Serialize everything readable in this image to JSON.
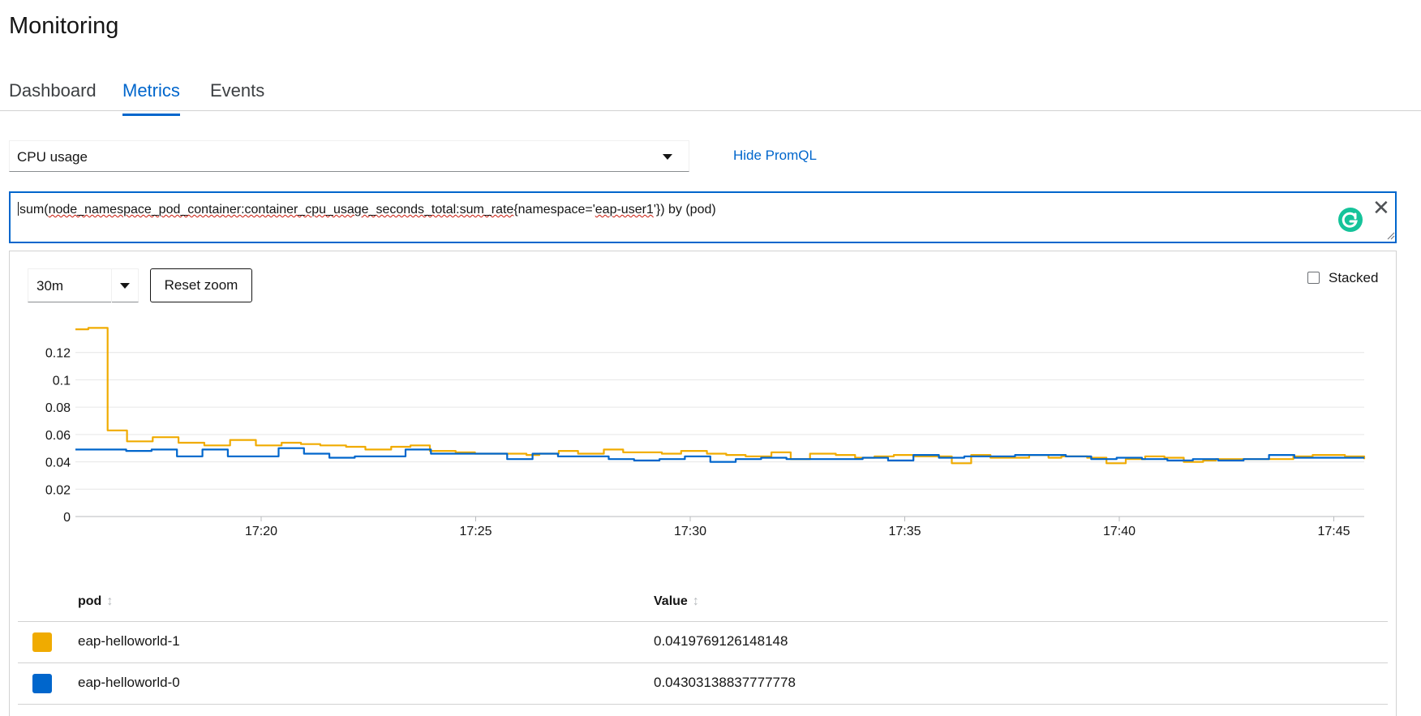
{
  "page": {
    "title": "Monitoring"
  },
  "tabs": [
    {
      "label": "Dashboard",
      "active": false
    },
    {
      "label": "Metrics",
      "active": true
    },
    {
      "label": "Events",
      "active": false
    }
  ],
  "query_select": {
    "value": "CPU usage"
  },
  "hide_promql": {
    "label": "Hide PromQL"
  },
  "promql": {
    "prefix": "sum(",
    "metric": "node_namespace_pod_container:container_cpu_usage_seconds_total:sum_rate",
    "open": "{namespace='",
    "namespace": "eap-user1",
    "suffix": "'}) by (pod)"
  },
  "controls": {
    "timespan": "30m",
    "reset_zoom": "Reset zoom",
    "stacked_label": "Stacked",
    "stacked_checked": false
  },
  "table": {
    "headers": {
      "pod": "pod",
      "value": "Value"
    },
    "rows": [
      {
        "pod": "eap-helloworld-1",
        "value": "0.0419769126148148",
        "color": "#f0ab00"
      },
      {
        "pod": "eap-helloworld-0",
        "value": "0.04303138837777778",
        "color": "#0066cc"
      }
    ]
  },
  "chart_data": {
    "type": "line",
    "x_ticks": [
      "17:20",
      "17:25",
      "17:30",
      "17:35",
      "17:40",
      "17:45"
    ],
    "y_ticks": [
      "0",
      "0.02",
      "0.04",
      "0.06",
      "0.08",
      "0.1",
      "0.12"
    ],
    "ylim": [
      0,
      0.14
    ],
    "grid": true,
    "series": [
      {
        "name": "eap-helloworld-1",
        "color": "#f0ab00",
        "values": [
          0.137,
          0.137,
          0.138,
          0.138,
          0.138,
          0.063,
          0.063,
          0.063,
          0.055,
          0.055,
          0.055,
          0.055,
          0.058,
          0.058,
          0.058,
          0.058,
          0.054,
          0.054,
          0.054,
          0.054,
          0.052,
          0.052,
          0.052,
          0.052,
          0.056,
          0.056,
          0.056,
          0.056,
          0.052,
          0.052,
          0.052,
          0.052,
          0.054,
          0.054,
          0.054,
          0.053,
          0.053,
          0.053,
          0.052,
          0.052,
          0.052,
          0.052,
          0.051,
          0.051,
          0.051,
          0.049,
          0.049,
          0.049,
          0.049,
          0.051,
          0.051,
          0.051,
          0.052,
          0.052,
          0.052,
          0.048,
          0.048,
          0.048,
          0.048,
          0.047,
          0.047,
          0.047,
          0.046,
          0.046,
          0.046,
          0.046,
          0.046,
          0.046,
          0.046,
          0.046,
          0.045,
          0.045,
          0.046,
          0.046,
          0.046,
          0.048,
          0.048,
          0.048,
          0.046,
          0.046,
          0.046,
          0.046,
          0.049,
          0.049,
          0.049,
          0.047,
          0.047,
          0.047,
          0.047,
          0.047,
          0.047,
          0.046,
          0.046,
          0.046,
          0.048,
          0.048,
          0.048,
          0.048,
          0.046,
          0.046,
          0.046,
          0.045,
          0.045,
          0.045,
          0.044,
          0.044,
          0.044,
          0.044,
          0.047,
          0.047,
          0.047,
          0.042,
          0.042,
          0.042,
          0.046,
          0.046,
          0.046,
          0.046,
          0.045,
          0.045,
          0.045,
          0.043,
          0.043,
          0.043,
          0.044,
          0.044,
          0.044,
          0.045,
          0.045,
          0.045,
          0.044,
          0.044,
          0.044,
          0.044,
          0.044,
          0.044,
          0.039,
          0.039,
          0.039,
          0.045,
          0.045,
          0.045,
          0.043,
          0.043,
          0.043,
          0.043,
          0.043,
          0.043,
          0.045,
          0.045,
          0.045,
          0.043,
          0.043,
          0.044,
          0.044,
          0.044,
          0.044,
          0.043,
          0.043,
          0.043,
          0.039,
          0.039,
          0.039,
          0.042,
          0.042,
          0.042,
          0.044,
          0.044,
          0.044,
          0.043,
          0.043,
          0.043,
          0.04,
          0.04,
          0.04,
          0.041,
          0.041,
          0.042,
          0.042,
          0.042,
          0.042,
          0.042,
          0.042,
          0.042,
          0.042,
          0.042,
          0.042,
          0.042,
          0.042,
          0.044,
          0.044,
          0.044,
          0.045,
          0.045,
          0.045,
          0.045,
          0.045,
          0.044,
          0.044,
          0.044,
          0.042
        ],
        "note_values_are_approximate": true
      },
      {
        "name": "eap-helloworld-0",
        "color": "#0066cc",
        "values": [
          0.049,
          0.049,
          0.049,
          0.049,
          0.049,
          0.049,
          0.049,
          0.049,
          0.048,
          0.048,
          0.048,
          0.048,
          0.049,
          0.049,
          0.049,
          0.049,
          0.044,
          0.044,
          0.044,
          0.044,
          0.049,
          0.049,
          0.049,
          0.049,
          0.044,
          0.044,
          0.044,
          0.044,
          0.044,
          0.044,
          0.044,
          0.044,
          0.05,
          0.05,
          0.05,
          0.05,
          0.046,
          0.046,
          0.046,
          0.046,
          0.043,
          0.043,
          0.043,
          0.043,
          0.044,
          0.044,
          0.044,
          0.044,
          0.044,
          0.044,
          0.044,
          0.044,
          0.049,
          0.049,
          0.049,
          0.049,
          0.046,
          0.046,
          0.046,
          0.046,
          0.046,
          0.046,
          0.046,
          0.046,
          0.046,
          0.046,
          0.046,
          0.046,
          0.042,
          0.042,
          0.042,
          0.042,
          0.046,
          0.046,
          0.046,
          0.046,
          0.044,
          0.044,
          0.044,
          0.044,
          0.044,
          0.044,
          0.044,
          0.044,
          0.042,
          0.042,
          0.042,
          0.042,
          0.041,
          0.041,
          0.041,
          0.041,
          0.042,
          0.042,
          0.042,
          0.042,
          0.044,
          0.044,
          0.044,
          0.044,
          0.04,
          0.04,
          0.04,
          0.04,
          0.042,
          0.042,
          0.042,
          0.042,
          0.043,
          0.043,
          0.043,
          0.043,
          0.042,
          0.042,
          0.042,
          0.042,
          0.042,
          0.042,
          0.042,
          0.042,
          0.042,
          0.042,
          0.042,
          0.042,
          0.043,
          0.043,
          0.043,
          0.043,
          0.041,
          0.041,
          0.041,
          0.041,
          0.045,
          0.045,
          0.045,
          0.045,
          0.043,
          0.043,
          0.043,
          0.043,
          0.044,
          0.044,
          0.044,
          0.044,
          0.044,
          0.044,
          0.044,
          0.044,
          0.045,
          0.045,
          0.045,
          0.045,
          0.045,
          0.045,
          0.045,
          0.045,
          0.044,
          0.044,
          0.044,
          0.044,
          0.042,
          0.042,
          0.042,
          0.042,
          0.043,
          0.043,
          0.043,
          0.043,
          0.042,
          0.042,
          0.042,
          0.042,
          0.041,
          0.041,
          0.041,
          0.041,
          0.042,
          0.042,
          0.042,
          0.042,
          0.041,
          0.041,
          0.041,
          0.041,
          0.042,
          0.042,
          0.042,
          0.042,
          0.045,
          0.045,
          0.045,
          0.045,
          0.043,
          0.043,
          0.043,
          0.043,
          0.043,
          0.043,
          0.043,
          0.043,
          0.043,
          0.043,
          0.043,
          0.043
        ]
      }
    ]
  }
}
